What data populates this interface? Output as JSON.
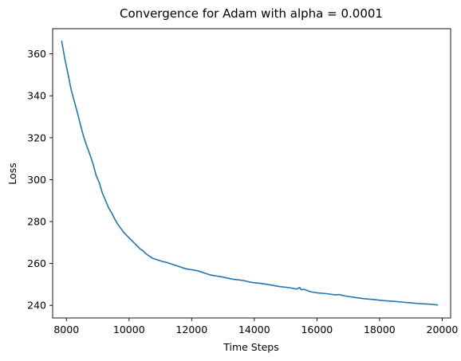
{
  "chart_data": {
    "type": "line",
    "title": "Convergence for Adam with alpha = 0.0001",
    "xlabel": "Time Steps",
    "ylabel": "Loss",
    "xlim": [
      7560,
      20270
    ],
    "ylim": [
      234,
      372
    ],
    "xticks": [
      8000,
      10000,
      12000,
      14000,
      16000,
      18000,
      20000
    ],
    "yticks": [
      240,
      260,
      280,
      300,
      320,
      340,
      360
    ],
    "grid": false,
    "legend": "none",
    "colors": {
      "line": "#1f77b4"
    },
    "series": [
      {
        "x": [
          7850,
          7950,
          8050,
          8150,
          8250,
          8350,
          8450,
          8550,
          8650,
          8750,
          8850,
          8950,
          9050,
          9150,
          9250,
          9350,
          9450,
          9550,
          9650,
          9750,
          9850,
          9950,
          10050,
          10150,
          10250,
          10350,
          10450,
          10550,
          10650,
          10750,
          10850,
          10950,
          11050,
          11200,
          11400,
          11600,
          11800,
          12000,
          12200,
          12400,
          12600,
          12800,
          13000,
          13300,
          13600,
          13900,
          14200,
          14500,
          14800,
          15100,
          15350,
          15450,
          15500,
          15600,
          15800,
          16000,
          16300,
          16600,
          16700,
          16900,
          17200,
          17500,
          17800,
          18100,
          18400,
          18700,
          19000,
          19300,
          19600,
          19850
        ],
        "values": [
          366,
          357.5,
          350.5,
          343,
          337.5,
          332,
          326,
          320.5,
          316,
          312,
          307.5,
          302,
          298.5,
          293.5,
          290,
          286.5,
          284,
          281,
          278.5,
          276.5,
          274.5,
          273,
          271.5,
          270,
          268.5,
          267,
          266,
          264.5,
          263.5,
          262.5,
          262,
          261.5,
          261,
          260.5,
          259.5,
          258.5,
          257.5,
          257,
          256.5,
          255.5,
          254.5,
          254,
          253.5,
          252.5,
          252,
          251,
          250.5,
          249.8,
          249,
          248.5,
          247.8,
          248.5,
          247.5,
          247.6,
          246.5,
          246,
          245.6,
          245,
          245.2,
          244.5,
          243.8,
          243.2,
          242.8,
          242.3,
          242,
          241.6,
          241.2,
          240.8,
          240.6,
          240.2
        ]
      }
    ]
  }
}
